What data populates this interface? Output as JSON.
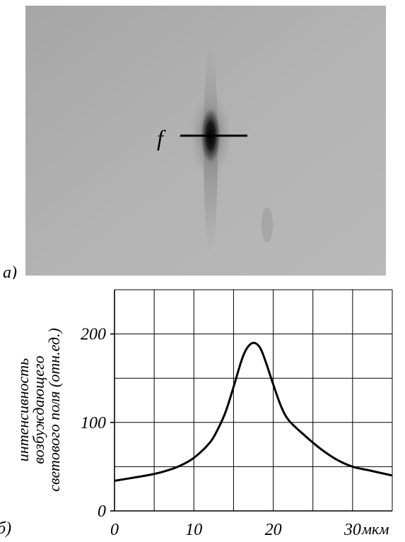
{
  "panel_a": {
    "label": "а)",
    "marker_label": "f"
  },
  "panel_b": {
    "label": "б)"
  },
  "chart_data": {
    "type": "line",
    "ylabel_lines": [
      "интенсивность",
      "возбуждающего",
      "светового поля (отн.ед.)"
    ],
    "xunit": "мкм",
    "xlim": [
      0,
      35
    ],
    "ylim": [
      0,
      250
    ],
    "x_ticks": [
      0,
      10,
      20,
      30
    ],
    "y_ticks": [
      0,
      100,
      200
    ],
    "grid": true,
    "series": [
      {
        "x": [
          0,
          2,
          4,
          6,
          8,
          10,
          12,
          13,
          14,
          15,
          16,
          16.7,
          17.5,
          18.3,
          19,
          20,
          21,
          22,
          24,
          26,
          28,
          30,
          32,
          35
        ],
        "y": [
          34,
          37,
          40,
          44,
          50,
          60,
          77,
          92,
          112,
          140,
          170,
          184,
          190,
          185,
          170,
          143,
          118,
          102,
          85,
          70,
          58,
          50,
          46,
          40
        ]
      }
    ]
  }
}
